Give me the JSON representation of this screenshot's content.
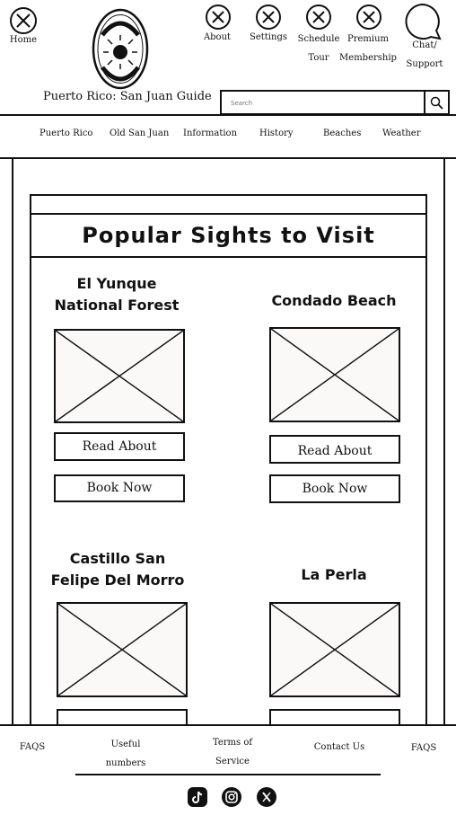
{
  "header": {
    "home_label": "Home",
    "logo_text": "San Juan Guide",
    "site_title": "Puerto Rico: San Juan Guide",
    "nav": {
      "about": "About",
      "settings": "Settings",
      "schedule_line1": "Schedule",
      "schedule_line2": "Tour",
      "premium_line1": "Premium",
      "premium_line2": "Membership",
      "chat_line1": "Chat/",
      "chat_line2": "Support"
    },
    "search_placeholder": "Search"
  },
  "menu": {
    "items": [
      "Puerto Rico",
      "Old San Juan",
      "Information",
      "History",
      "Beaches",
      "Weather"
    ]
  },
  "main": {
    "heading": "Popular Sights to Visit",
    "cards": [
      {
        "title_line1": "El Yunque",
        "title_line2": "National Forest",
        "read_label": "Read About",
        "book_label": "Book Now"
      },
      {
        "title_line1": "Condado Beach",
        "title_line2": "",
        "read_label": "Read About",
        "book_label": "Book Now"
      },
      {
        "title_line1": "Castillo San",
        "title_line2": "Felipe Del Morro"
      },
      {
        "title_line1": "La Perla",
        "title_line2": ""
      }
    ]
  },
  "footer": {
    "faqs_left": "FAQS",
    "useful_line1": "Useful",
    "useful_line2": "numbers",
    "terms_line1": "Terms of",
    "terms_line2": "Service",
    "contact": "Contact Us",
    "faqs_right": "FAQS",
    "social": [
      "tiktok-icon",
      "instagram-icon",
      "x-twitter-icon"
    ]
  }
}
